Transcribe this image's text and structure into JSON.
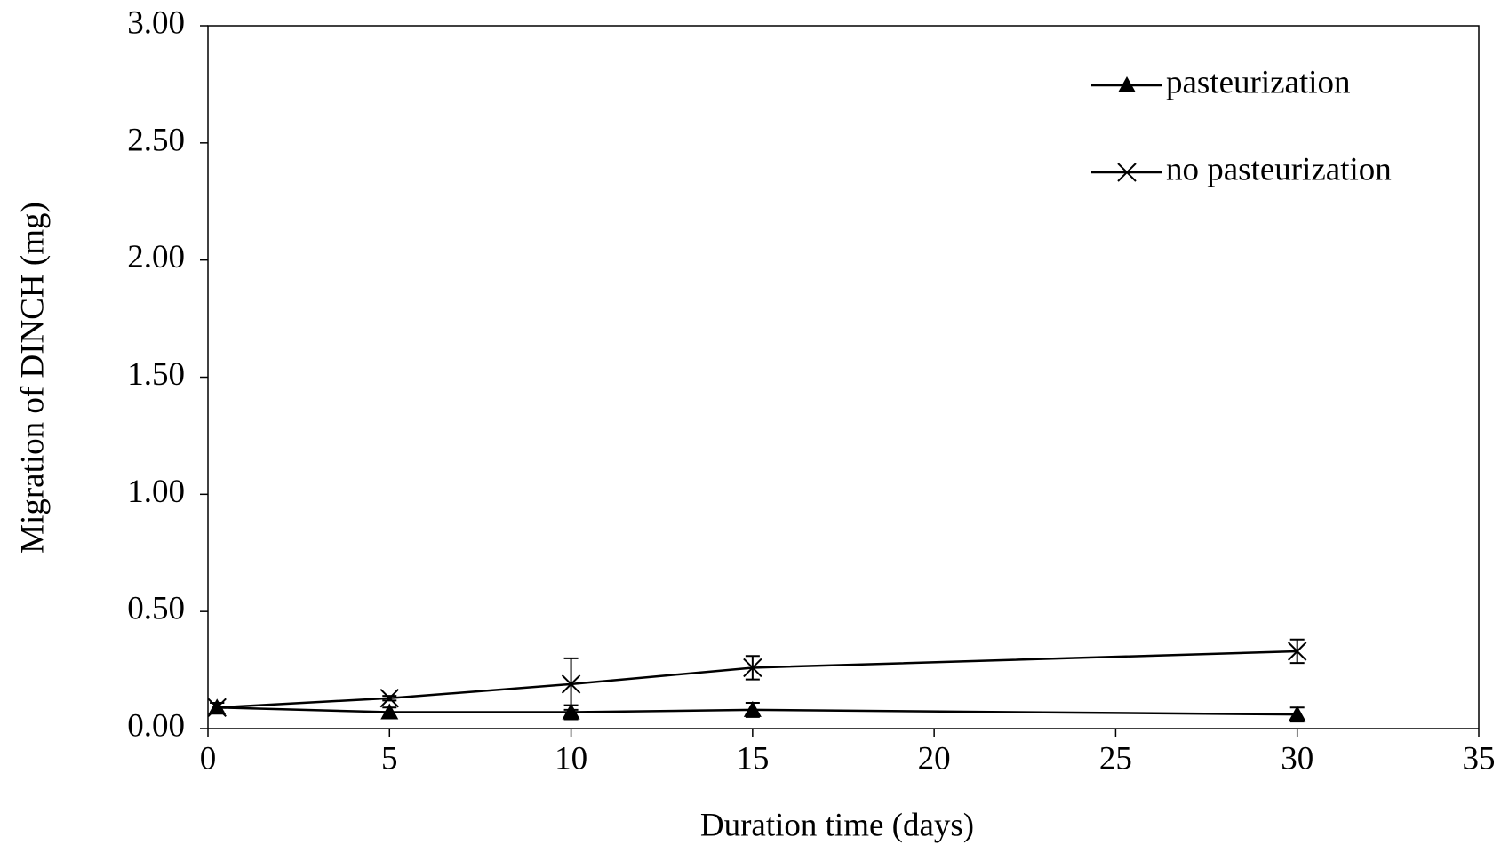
{
  "chart_data": {
    "type": "line",
    "x_label": "Duration time (days)",
    "y_label": "Migration of DINCH (mg)",
    "x": [
      0.25,
      5,
      10,
      15,
      30
    ],
    "series": [
      {
        "name": "pasteurization",
        "color": "#000000",
        "marker": "triangle",
        "values": [
          0.09,
          0.07,
          0.07,
          0.08,
          0.06
        ],
        "errors": [
          0.02,
          0.02,
          0.03,
          0.03,
          0.03
        ]
      },
      {
        "name": "no pasteurization",
        "color": "#000000",
        "marker": "x",
        "values": [
          0.09,
          0.13,
          0.19,
          0.26,
          0.33
        ],
        "errors": [
          0.02,
          0.01,
          0.11,
          0.05,
          0.05
        ]
      }
    ],
    "xlim": [
      0,
      35
    ],
    "xticks": [
      0,
      5,
      10,
      15,
      20,
      25,
      30,
      35
    ],
    "ylim": [
      0,
      3
    ],
    "yticks": [
      {
        "value": 0,
        "label": "0.00"
      },
      {
        "value": 0.5,
        "label": "0.50"
      },
      {
        "value": 1,
        "label": "1.00"
      },
      {
        "value": 1.5,
        "label": "1.50"
      },
      {
        "value": 2,
        "label": "2.00"
      },
      {
        "value": 2.5,
        "label": "2.50"
      },
      {
        "value": 3,
        "label": "3.00"
      }
    ],
    "grid": false,
    "legend": "upper right"
  }
}
